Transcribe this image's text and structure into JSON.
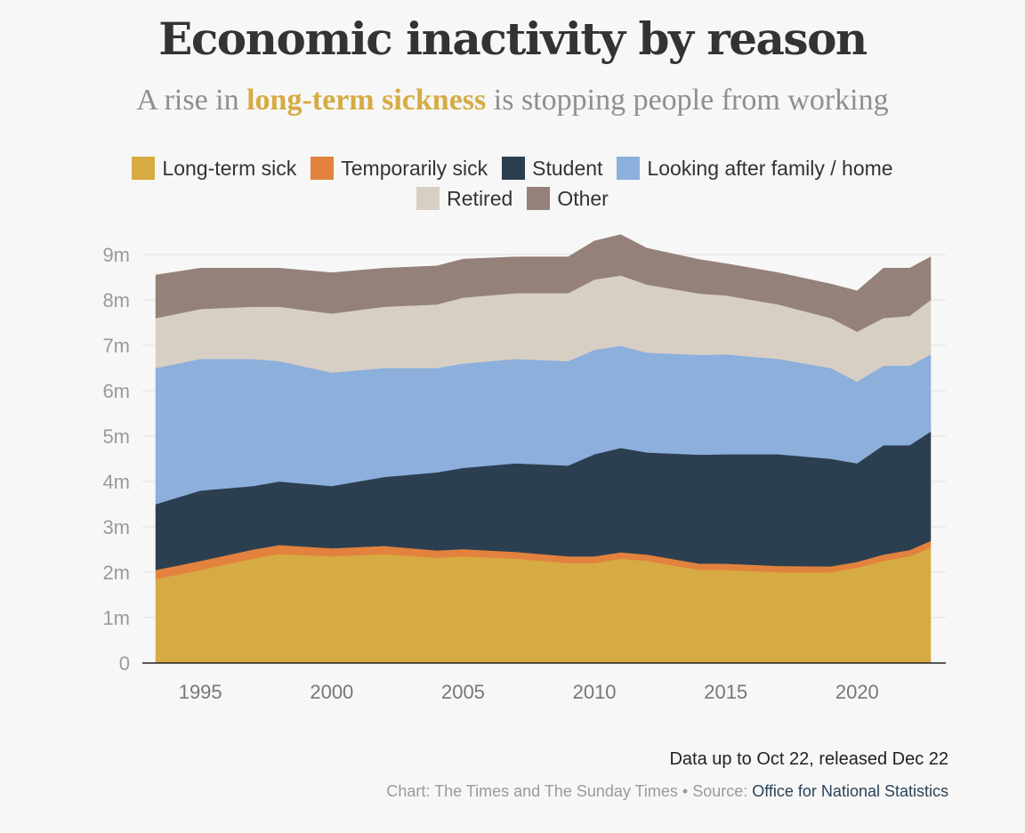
{
  "header": {
    "title": "Economic inactivity by reason",
    "subtitle_pre": "A rise in ",
    "subtitle_highlight": "long-term sickness",
    "subtitle_post": " is stopping people from working"
  },
  "legend": [
    {
      "label": "Long-term sick",
      "color": "#d6ab43"
    },
    {
      "label": "Temporarily sick",
      "color": "#e3823e"
    },
    {
      "label": "Student",
      "color": "#2c3f50"
    },
    {
      "label": "Looking after family / home",
      "color": "#8cafdc"
    },
    {
      "label": "Retired",
      "color": "#d8cfc4"
    },
    {
      "label": "Other",
      "color": "#948179"
    }
  ],
  "chart_data": {
    "type": "area",
    "stacked": true,
    "title": "Economic inactivity by reason",
    "subtitle": "A rise in long-term sickness is stopping people from working",
    "xlabel": "",
    "ylabel": "",
    "xlim": [
      1993.3,
      2022.8
    ],
    "ylim": [
      0,
      9000000
    ],
    "x_ticks": [
      1995,
      2000,
      2005,
      2010,
      2015,
      2020
    ],
    "x_tick_labels": [
      "1995",
      "2000",
      "2005",
      "2010",
      "2015",
      "2020"
    ],
    "y_ticks": [
      0,
      1000000,
      2000000,
      3000000,
      4000000,
      5000000,
      6000000,
      7000000,
      8000000,
      9000000
    ],
    "y_tick_labels": [
      "0",
      "1m",
      "2m",
      "3m",
      "4m",
      "5m",
      "6m",
      "7m",
      "8m",
      "9m"
    ],
    "x": [
      1993.3,
      1995,
      1997,
      1998,
      2000,
      2002,
      2004,
      2005,
      2007,
      2009,
      2010,
      2011,
      2012,
      2014,
      2015,
      2017,
      2019,
      2020,
      2021,
      2022,
      2022.8
    ],
    "series": [
      {
        "name": "Long-term sick",
        "color": "#d6ab43",
        "values": [
          1.85,
          2.05,
          2.3,
          2.4,
          2.35,
          2.4,
          2.32,
          2.35,
          2.3,
          2.2,
          2.2,
          2.3,
          2.25,
          2.05,
          2.05,
          2.0,
          2.0,
          2.1,
          2.25,
          2.35,
          2.55
        ]
      },
      {
        "name": "Temporarily sick",
        "color": "#e3823e",
        "values": [
          0.2,
          0.2,
          0.2,
          0.2,
          0.18,
          0.18,
          0.16,
          0.16,
          0.15,
          0.15,
          0.15,
          0.14,
          0.14,
          0.14,
          0.14,
          0.14,
          0.13,
          0.13,
          0.14,
          0.14,
          0.14
        ]
      },
      {
        "name": "Student",
        "color": "#2c3f50",
        "values": [
          1.45,
          1.55,
          1.4,
          1.4,
          1.37,
          1.52,
          1.72,
          1.79,
          1.95,
          2.0,
          2.25,
          2.3,
          2.25,
          2.4,
          2.41,
          2.46,
          2.37,
          2.17,
          2.41,
          2.31,
          2.41
        ]
      },
      {
        "name": "Looking after family / home",
        "color": "#8cafdc",
        "values": [
          3.0,
          2.9,
          2.8,
          2.65,
          2.5,
          2.4,
          2.3,
          2.3,
          2.3,
          2.3,
          2.3,
          2.25,
          2.2,
          2.2,
          2.2,
          2.1,
          2.0,
          1.8,
          1.75,
          1.75,
          1.7
        ]
      },
      {
        "name": "Retired",
        "color": "#d8cfc4",
        "values": [
          1.1,
          1.1,
          1.15,
          1.2,
          1.3,
          1.35,
          1.4,
          1.45,
          1.45,
          1.5,
          1.55,
          1.55,
          1.5,
          1.35,
          1.3,
          1.2,
          1.1,
          1.1,
          1.05,
          1.1,
          1.2
        ]
      },
      {
        "name": "Other",
        "color": "#948179",
        "values": [
          0.95,
          0.9,
          0.85,
          0.85,
          0.9,
          0.85,
          0.85,
          0.85,
          0.8,
          0.8,
          0.85,
          0.9,
          0.8,
          0.75,
          0.7,
          0.7,
          0.75,
          0.9,
          1.1,
          1.05,
          0.95
        ]
      }
    ],
    "value_unit_multiplier": 1000000,
    "grid": true
  },
  "footer": {
    "note": "Data up to Oct 22, released Dec 22",
    "source_prefix": "Chart: The Times and The Sunday Times • Source: ",
    "source_org": "Office for National Statistics"
  }
}
